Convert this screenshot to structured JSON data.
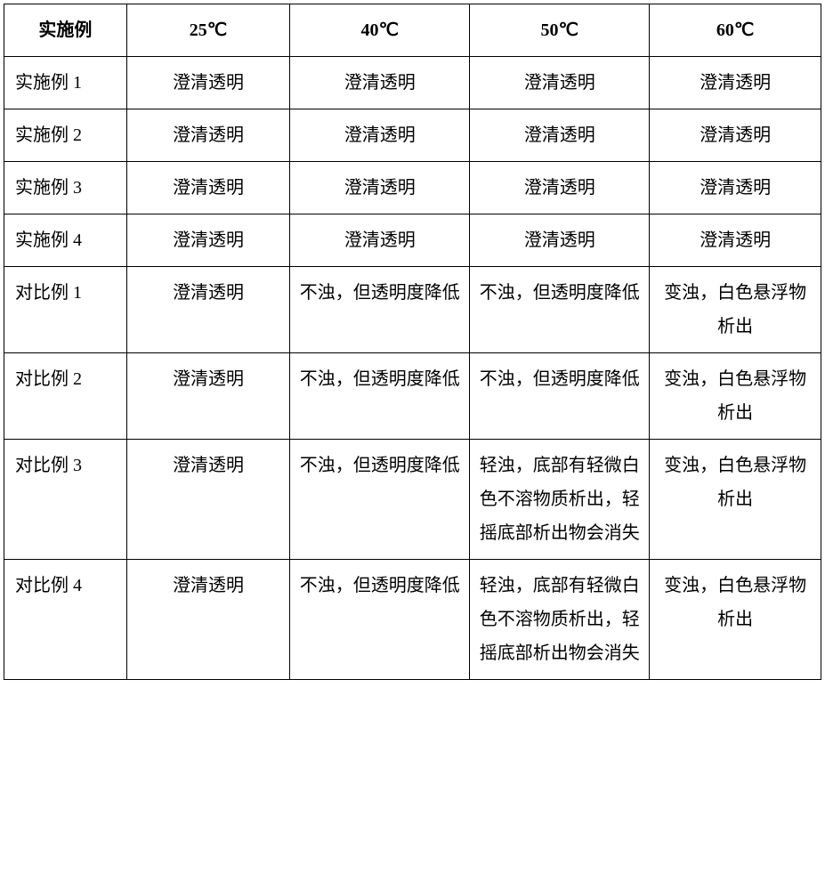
{
  "table": {
    "columns": [
      "实施例",
      "25℃",
      "40℃",
      "50℃",
      "60℃"
    ],
    "rows": [
      {
        "label": "实施例 1",
        "cells": [
          "澄清透明",
          "澄清透明",
          "澄清透明",
          "澄清透明"
        ]
      },
      {
        "label": "实施例 2",
        "cells": [
          "澄清透明",
          "澄清透明",
          "澄清透明",
          "澄清透明"
        ]
      },
      {
        "label": "实施例 3",
        "cells": [
          "澄清透明",
          "澄清透明",
          "澄清透明",
          "澄清透明"
        ]
      },
      {
        "label": "实施例 4",
        "cells": [
          "澄清透明",
          "澄清透明",
          "澄清透明",
          "澄清透明"
        ]
      },
      {
        "label": "对比例 1",
        "cells": [
          "澄清透明",
          "不浊，但透明度降低",
          "不浊，但透明度降低",
          "变浊，白色悬浮物析出"
        ]
      },
      {
        "label": "对比例 2",
        "cells": [
          "澄清透明",
          "不浊，但透明度降低",
          "不浊，但透明度降低",
          "变浊，白色悬浮物析出"
        ]
      },
      {
        "label": "对比例 3",
        "cells": [
          "澄清透明",
          "不浊，但透明度降低",
          "轻浊，底部有轻微白色不溶物质析出，轻摇底部析出物会消失",
          "变浊，白色悬浮物析出"
        ]
      },
      {
        "label": "对比例 4",
        "cells": [
          "澄清透明",
          "不浊，但透明度降低",
          "轻浊，底部有轻微白色不溶物质析出，轻摇底部析出物会消失",
          "变浊，白色悬浮物析出"
        ]
      }
    ],
    "style": {
      "border_color": "#000000",
      "background_color": "#ffffff",
      "font_family": "SimSun",
      "font_size_pt": 15,
      "line_height": 1.9,
      "col_widths_pct": [
        15,
        20,
        22,
        22,
        21
      ],
      "header_align": "center",
      "cell_align": "center",
      "row_label_align": "left"
    }
  }
}
